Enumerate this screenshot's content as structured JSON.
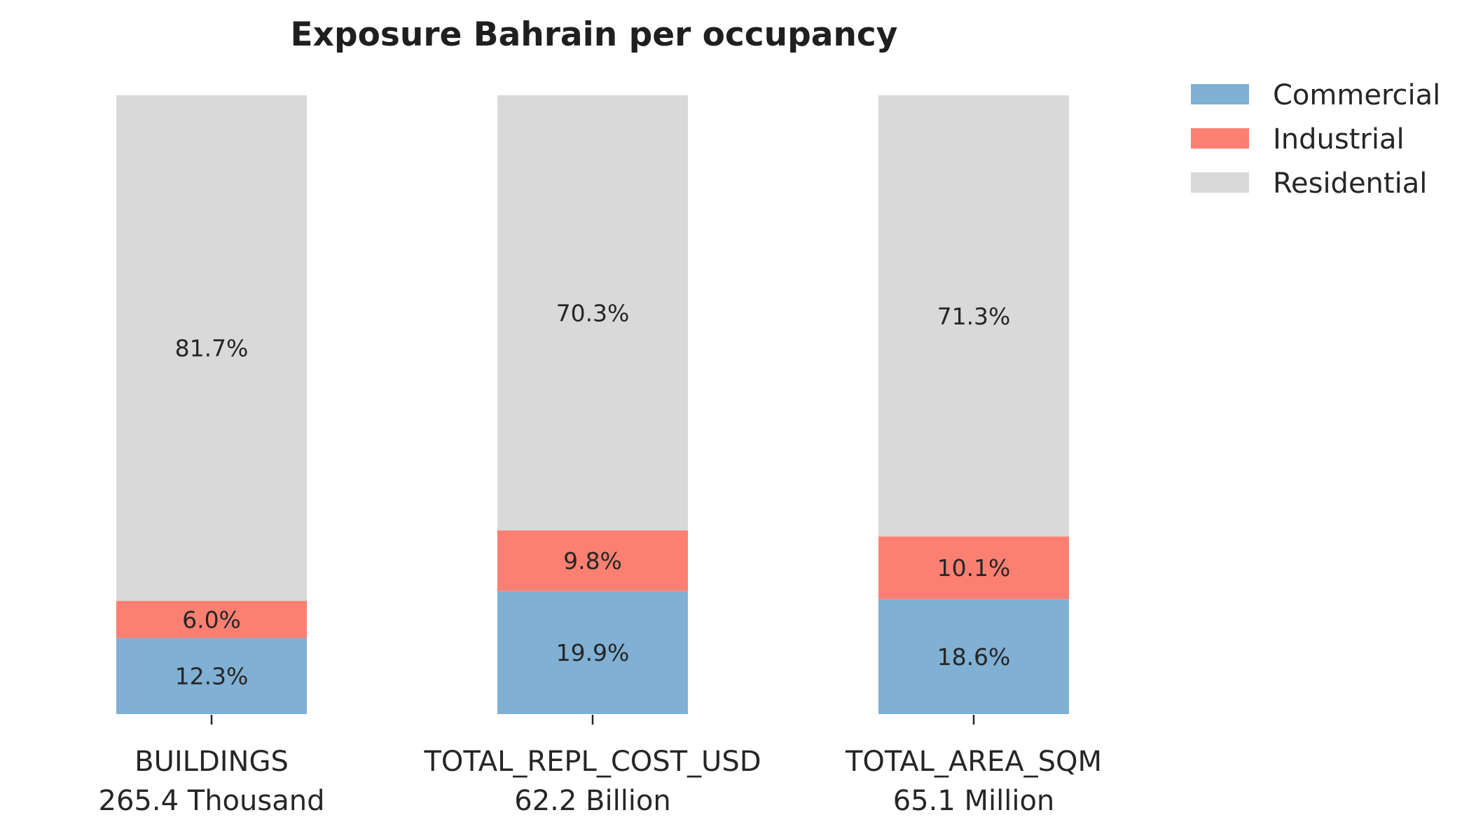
{
  "chart_data": {
    "type": "bar",
    "stacked": true,
    "title": "Exposure Bahrain per occupancy",
    "xlabel": "",
    "ylabel": "",
    "ylim": [
      0,
      100
    ],
    "categories": [
      "BUILDINGS",
      "TOTAL_REPL_COST_USD",
      "TOTAL_AREA_SQM"
    ],
    "category_totals": [
      "265.4 Thousand",
      "62.2 Billion",
      "65.1 Million"
    ],
    "series": [
      {
        "name": "Commercial",
        "color": "#80b0d3",
        "values": [
          12.3,
          19.9,
          18.6
        ],
        "labels": [
          "12.3%",
          "19.9%",
          "18.6%"
        ]
      },
      {
        "name": "Industrial",
        "color": "#fb8072",
        "values": [
          6.0,
          9.8,
          10.1
        ],
        "labels": [
          "6.0%",
          "9.8%",
          "10.1%"
        ]
      },
      {
        "name": "Residential",
        "color": "#d9d9d9",
        "values": [
          81.7,
          70.3,
          71.3
        ],
        "labels": [
          "81.7%",
          "70.3%",
          "71.3%"
        ]
      }
    ],
    "legend": {
      "placement": "top-right",
      "items": [
        "Commercial",
        "Industrial",
        "Residential"
      ]
    },
    "grid": false
  }
}
